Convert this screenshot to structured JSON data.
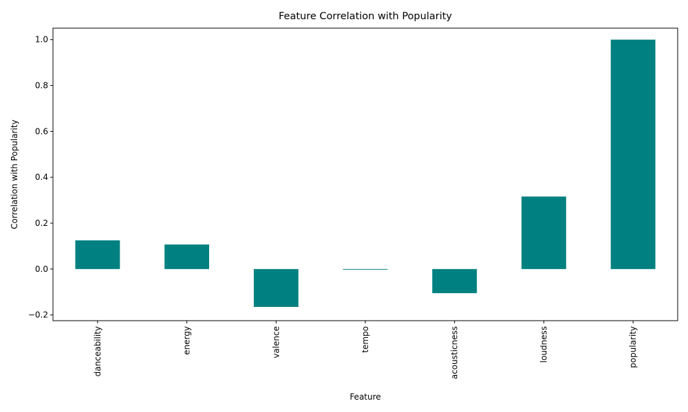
{
  "chart_data": {
    "type": "bar",
    "title": "Feature Correlation with Popularity",
    "xlabel": "Feature",
    "ylabel": "Correlation with Popularity",
    "categories": [
      "danceability",
      "energy",
      "valence",
      "tempo",
      "acousticness",
      "loudness",
      "popularity"
    ],
    "values": [
      0.125,
      0.107,
      -0.165,
      -0.003,
      -0.105,
      0.316,
      1.0
    ],
    "ylim": [
      -0.225,
      1.05
    ],
    "yticks": [
      -0.2,
      0.0,
      0.2,
      0.4,
      0.6,
      0.8,
      1.0
    ],
    "ytick_labels": [
      "−0.2",
      "0.0",
      "0.2",
      "0.4",
      "0.6",
      "0.8",
      "1.0"
    ],
    "grid": false,
    "bar_color": "#008080"
  }
}
